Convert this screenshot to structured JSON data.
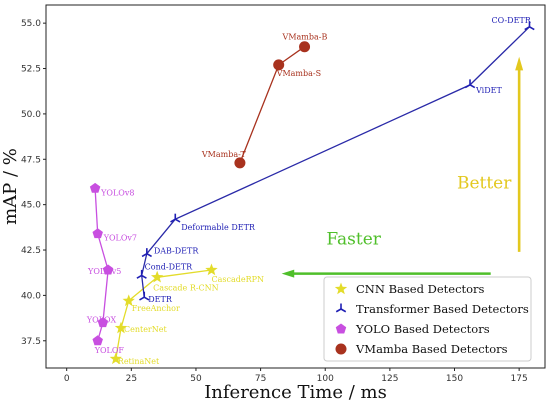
{
  "chart_data": {
    "type": "scatter",
    "xlabel": "Inference Time / ms",
    "ylabel": "mAP / %",
    "xlim": [
      -8,
      185
    ],
    "ylim": [
      36.0,
      56.0
    ],
    "x_ticks": [
      0,
      25,
      50,
      75,
      100,
      125,
      150,
      175
    ],
    "y_ticks": [
      37.5,
      40.0,
      42.5,
      45.0,
      47.5,
      50.0,
      52.5,
      55.0
    ],
    "y_tick_labels": [
      "37.5",
      "40.0",
      "42.5",
      "45.0",
      "47.5",
      "50.0",
      "52.5",
      "55.0"
    ],
    "grid": false,
    "legend_position": "bottom-right",
    "series": [
      {
        "name": "CNN Based Detectors",
        "marker": "star",
        "color": "#e3dc2a",
        "line_color": "#e3dc2a",
        "points": [
          {
            "x": 19,
            "y": 36.5,
            "label": "RetinaNet"
          },
          {
            "x": 21,
            "y": 38.2,
            "label": "CenterNet"
          },
          {
            "x": 24,
            "y": 39.7,
            "label": "FreeAnchor"
          },
          {
            "x": 35,
            "y": 41.0,
            "label": "Cascade R-CNN"
          },
          {
            "x": 56,
            "y": 41.4,
            "label": "CascadeRPN"
          }
        ]
      },
      {
        "name": "Transformer Based Detectors",
        "marker": "tri",
        "color": "#1f1fb4",
        "line_color": "#2a2aa8",
        "points": [
          {
            "x": 30,
            "y": 39.9,
            "label": "DETR"
          },
          {
            "x": 29,
            "y": 41.1,
            "label": "Cond-DETR"
          },
          {
            "x": 31,
            "y": 42.3,
            "label": "DAB-DETR"
          },
          {
            "x": 42,
            "y": 44.2,
            "label": "Deformable DETR"
          },
          {
            "x": 156,
            "y": 51.6,
            "label": "ViDET"
          },
          {
            "x": 179,
            "y": 54.8,
            "label": "CO-DETR"
          }
        ]
      },
      {
        "name": "YOLO Based Detectors",
        "marker": "pentagon",
        "color": "#c84fe0",
        "line_color": "#c84fe0",
        "points": [
          {
            "x": 12,
            "y": 37.5,
            "label": "YOLOF"
          },
          {
            "x": 14,
            "y": 38.5,
            "label": "YOLOX"
          },
          {
            "x": 16,
            "y": 41.4,
            "label": "YOLOv5"
          },
          {
            "x": 12,
            "y": 43.4,
            "label": "YOLOv7"
          },
          {
            "x": 11,
            "y": 45.9,
            "label": "YOLOv8"
          }
        ]
      },
      {
        "name": "VMamba Based Detectors",
        "marker": "circle",
        "color": "#a8321e",
        "line_color": "#a8321e",
        "points": [
          {
            "x": 67,
            "y": 47.3,
            "label": "VMamba-T"
          },
          {
            "x": 82,
            "y": 52.7,
            "label": "VMamba-S"
          },
          {
            "x": 92,
            "y": 53.7,
            "label": "VMamba-B"
          }
        ]
      }
    ],
    "annotations": [
      {
        "text": "Better",
        "color": "#e3c81e"
      },
      {
        "text": "Faster",
        "color": "#4fbf2a"
      }
    ]
  }
}
